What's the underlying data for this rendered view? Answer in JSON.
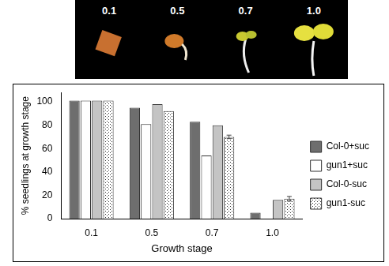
{
  "photo_strip": {
    "labels": [
      "0.1",
      "0.5",
      "0.7",
      "1.0"
    ]
  },
  "chart_data": {
    "type": "bar",
    "x_label": "Growth stage",
    "y_label": "% seedlings at growth stage",
    "categories": [
      "0.1",
      "0.5",
      "0.7",
      "1.0"
    ],
    "series": [
      {
        "name": "Col-0+suc",
        "color": "#6e6e6e",
        "values": [
          101,
          95,
          83,
          5
        ]
      },
      {
        "name": "gun1+suc",
        "color": "#ffffff",
        "values": [
          101,
          81,
          54,
          0
        ]
      },
      {
        "name": "Col-0-suc",
        "color": "#c4c4c4",
        "values": [
          101,
          98,
          80,
          16
        ]
      },
      {
        "name": "gun1-suc",
        "color": "#ffffff",
        "marker": "dots",
        "values": [
          101,
          92,
          70,
          17
        ],
        "errors": [
          null,
          null,
          1.5,
          2
        ]
      }
    ],
    "ylim": [
      0,
      108
    ],
    "yticks": [
      0,
      20,
      40,
      60,
      80,
      100
    ],
    "grid": false,
    "legend": "right"
  }
}
